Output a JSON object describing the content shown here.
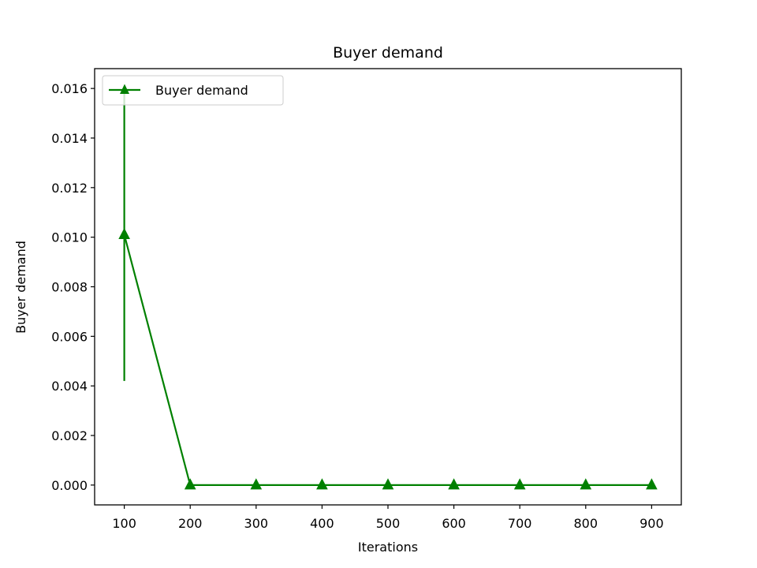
{
  "chart_data": {
    "type": "line",
    "title": "Buyer demand",
    "xlabel": "Iterations",
    "ylabel": "Buyer demand",
    "x": [
      100,
      200,
      300,
      400,
      500,
      600,
      700,
      800,
      900
    ],
    "xticks": [
      100,
      200,
      300,
      400,
      500,
      600,
      700,
      800,
      900
    ],
    "xlim": [
      55,
      945
    ],
    "yticks": [
      "0.000",
      "0.002",
      "0.004",
      "0.006",
      "0.008",
      "0.010",
      "0.012",
      "0.014",
      "0.016"
    ],
    "ytick_values": [
      0,
      0.002,
      0.004,
      0.006,
      0.008,
      0.01,
      0.012,
      0.014,
      0.016
    ],
    "ylim": [
      -0.0008,
      0.0168
    ],
    "grid": false,
    "legend": "top-left",
    "series": [
      {
        "name": "Buyer demand",
        "color": "#008000",
        "marker": "triangle-up",
        "values": [
          0.0101,
          0.0,
          0.0,
          0.0,
          0.0,
          0.0,
          0.0,
          0.0,
          0.0
        ],
        "error": [
          0.0059,
          0,
          0,
          0,
          0,
          0,
          0,
          0,
          0
        ]
      }
    ]
  }
}
